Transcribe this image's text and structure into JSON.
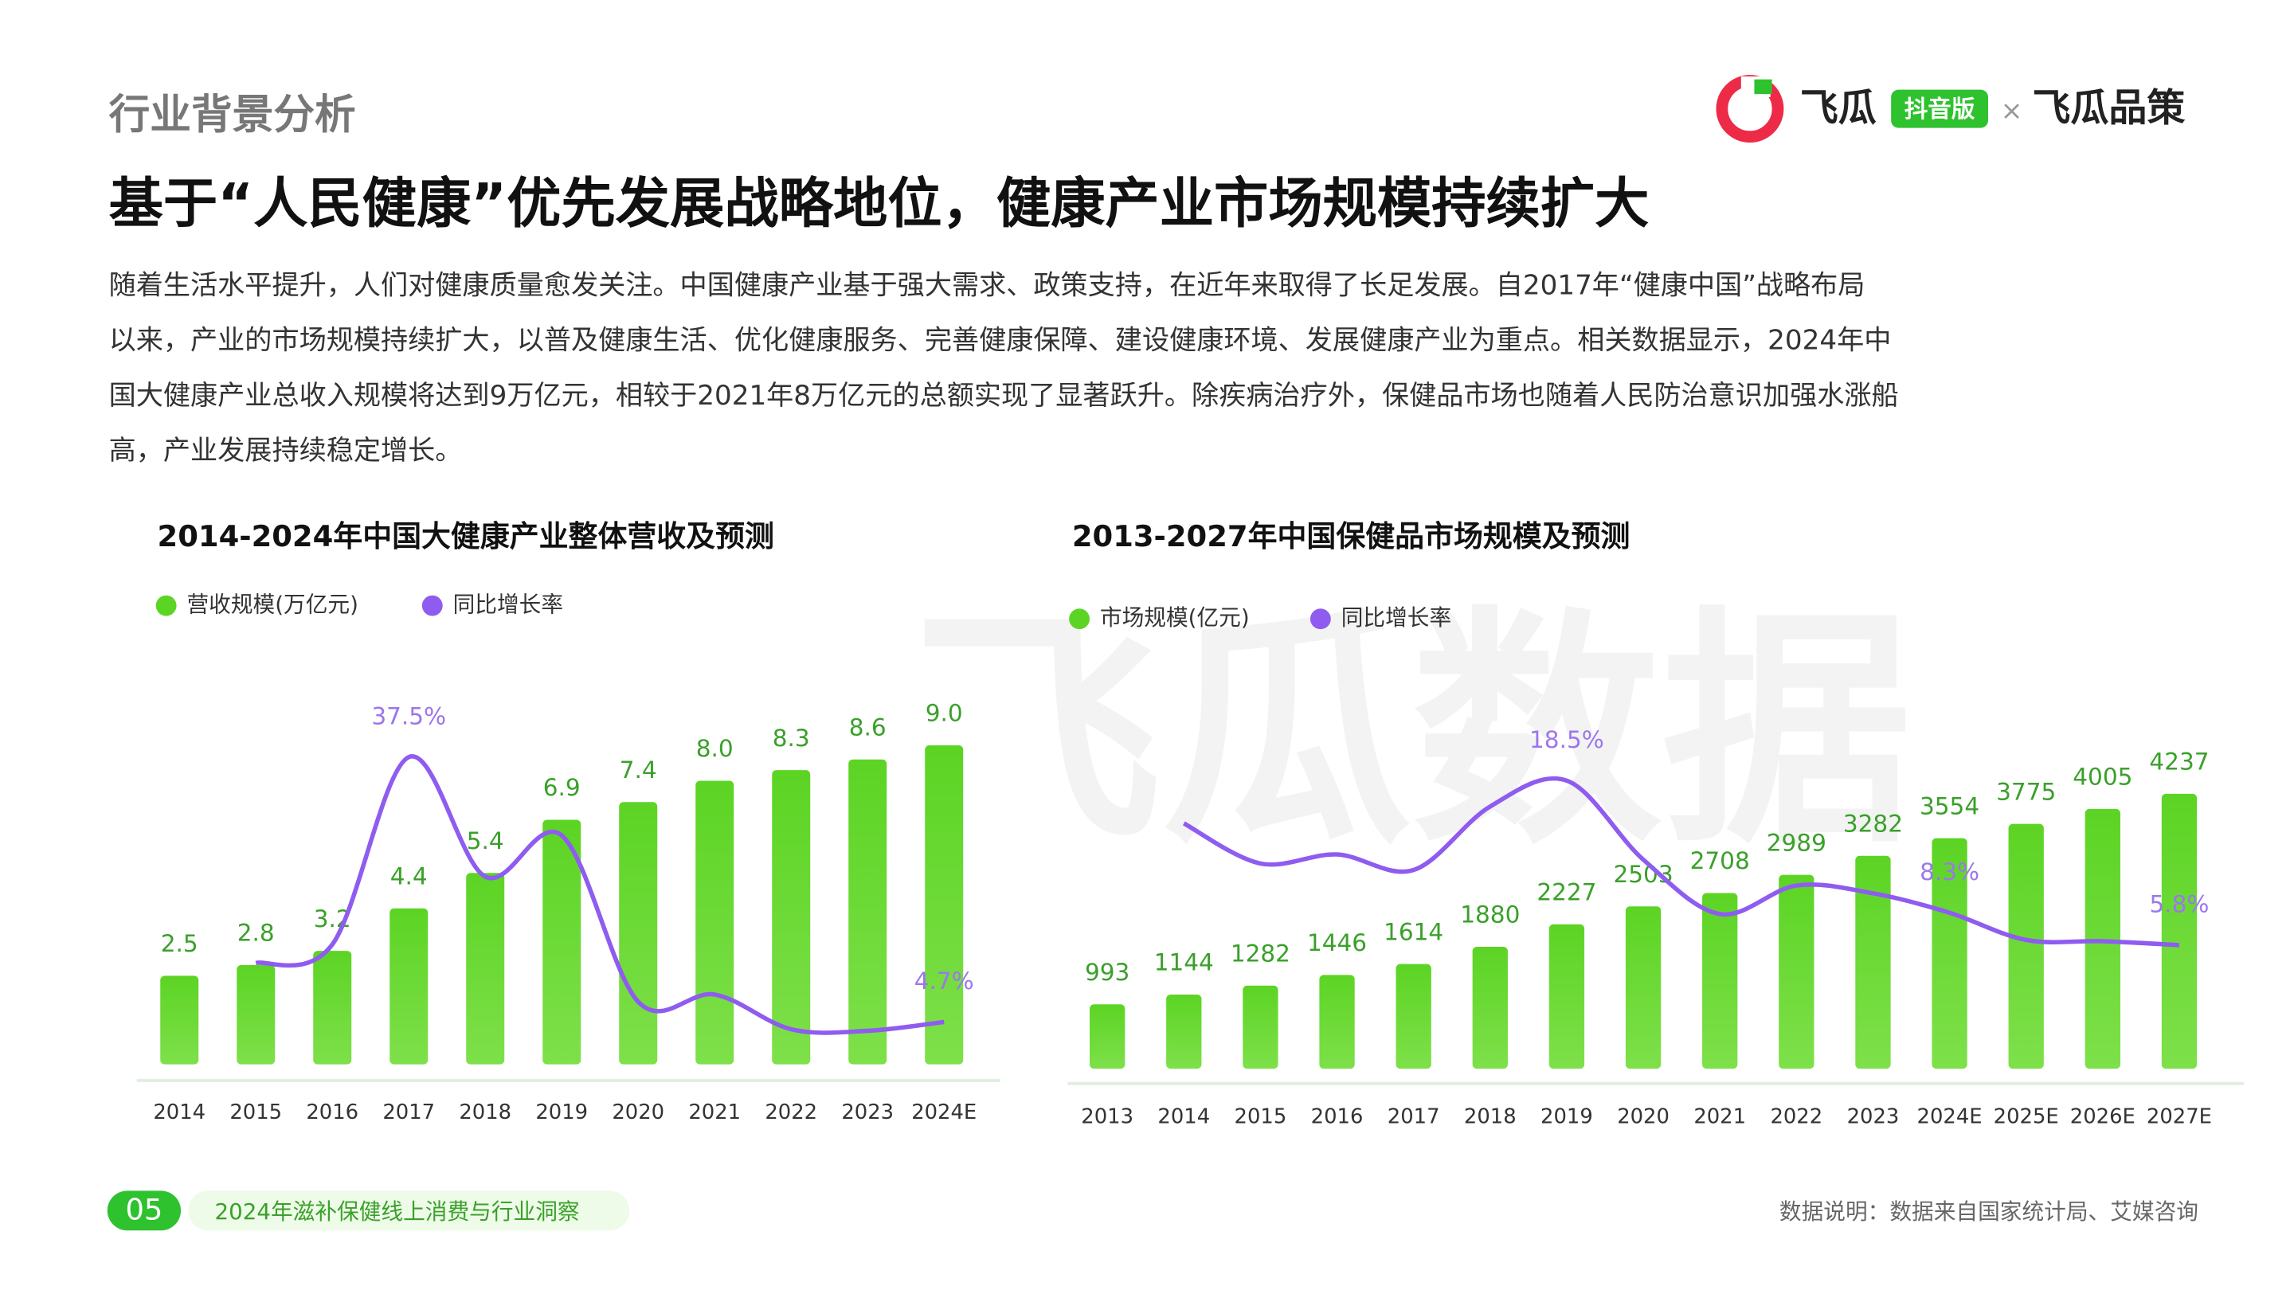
{
  "header": {
    "section": "行业背景分析",
    "title": "基于“人民健康”优先发展战略地位，健康产业市场规模持续扩大",
    "logo": {
      "brand": "飞瓜",
      "badge": "抖音版",
      "cross": "×",
      "partner": "飞瓜品策"
    },
    "watermark": "飞瓜数据"
  },
  "intro": [
    "随着生活水平提升，人们对健康质量愈发关注。中国健康产业基于强大需求、政策支持，在近年来取得了长足发展。自2017年“健康中国”战略布局",
    "以来，产业的市场规模持续扩大，以普及健康生活、优化健康服务、完善健康保障、建设健康环境、发展健康产业为重点。相关数据显示，2024年中",
    "国大健康产业总收入规模将达到9万亿元，相较于2021年8万亿元的总额实现了显著跃升。除疾病治疗外，保健品市场也随着人民防治意识加强水涨船",
    "高，产业发展持续稳定增长。"
  ],
  "chart_data": [
    {
      "type": "bar",
      "title": "2014-2024年中国大健康产业整体营收及预测",
      "categories": [
        "2014",
        "2015",
        "2016",
        "2017",
        "2018",
        "2019",
        "2020",
        "2021",
        "2022",
        "2023",
        "2024E"
      ],
      "series": [
        {
          "name": "营收规模(万亿元)",
          "color": "#5cd424",
          "values": [
            2.5,
            2.8,
            3.2,
            4.4,
            5.4,
            6.9,
            7.4,
            8.0,
            8.3,
            8.6,
            9.0
          ],
          "value_labels": [
            "2.5",
            "2.8",
            "3.2",
            "4.4",
            "5.4",
            "6.9",
            "7.4",
            "8.0",
            "8.3",
            "8.6",
            "9.0"
          ]
        },
        {
          "name": "同比增长率",
          "type": "line",
          "color": "#8f5cf0",
          "values": [
            null,
            12.0,
            14.3,
            37.5,
            22.7,
            27.8,
            7.2,
            8.1,
            3.8,
            3.6,
            4.7
          ],
          "value_labels": [
            null,
            null,
            null,
            "37.5%",
            null,
            null,
            null,
            null,
            null,
            null,
            "4.7%"
          ]
        }
      ]
    },
    {
      "type": "bar",
      "title": "2013-2027年中国保健品市场规模及预测",
      "categories": [
        "2013",
        "2014",
        "2015",
        "2016",
        "2017",
        "2018",
        "2019",
        "2020",
        "2021",
        "2022",
        "2023",
        "2024E",
        "2025E",
        "2026E",
        "2027E"
      ],
      "series": [
        {
          "name": "市场规模(亿元)",
          "color": "#5cd424",
          "values": [
            993,
            1144,
            1282,
            1446,
            1614,
            1880,
            2227,
            2503,
            2708,
            2989,
            3282,
            3554,
            3775,
            4005,
            4237
          ]
        },
        {
          "name": "同比增长率",
          "type": "line",
          "color": "#8f5cf0",
          "values": [
            null,
            15.2,
            12.1,
            12.8,
            11.6,
            16.5,
            18.5,
            12.4,
            8.2,
            10.4,
            9.8,
            8.3,
            6.2,
            6.1,
            5.8
          ],
          "value_labels": [
            null,
            null,
            null,
            null,
            null,
            null,
            "18.5%",
            null,
            null,
            null,
            null,
            "8.3%",
            null,
            null,
            "5.8%"
          ]
        }
      ]
    }
  ],
  "footer": {
    "page": "05",
    "report": "2024年滋补保健线上消费与行业洞察",
    "source": "数据说明：数据来自国家统计局、艾媒咨询"
  }
}
